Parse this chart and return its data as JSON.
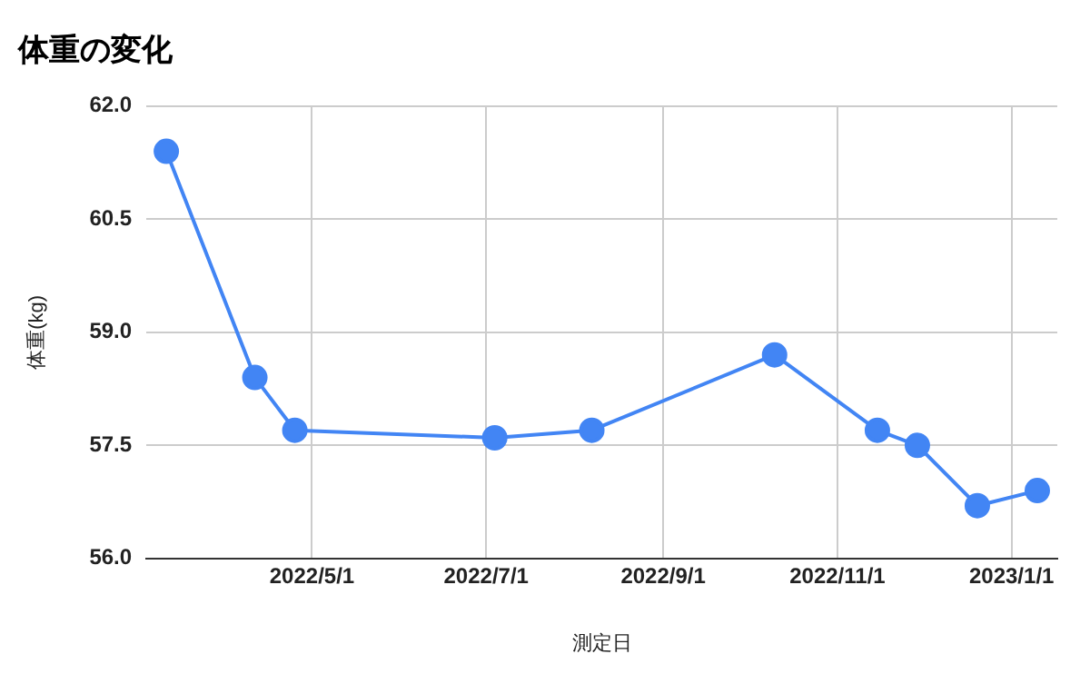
{
  "chart_data": {
    "type": "line",
    "title": "体重の変化",
    "xlabel": "測定日",
    "ylabel": "体重(kg)",
    "x": [
      "2022-03-11",
      "2022-04-11",
      "2022-04-25",
      "2022-07-04",
      "2022-08-07",
      "2022-10-10",
      "2022-11-15",
      "2022-11-29",
      "2022-12-20",
      "2023-01-10"
    ],
    "series": [
      {
        "color": "#4285f4",
        "values": [
          61.4,
          58.4,
          57.7,
          57.6,
          57.7,
          58.7,
          57.7,
          57.5,
          56.7,
          56.9
        ]
      }
    ],
    "xlim": [
      "2022-03-04",
      "2023-01-17"
    ],
    "xticks": [
      {
        "value": "2022-05-01",
        "label": "2022/5/1"
      },
      {
        "value": "2022-07-01",
        "label": "2022/7/1"
      },
      {
        "value": "2022-09-01",
        "label": "2022/9/1"
      },
      {
        "value": "2022-11-01",
        "label": "2022/11/1"
      },
      {
        "value": "2023-01-01",
        "label": "2023/1/1"
      }
    ],
    "ylim": [
      56,
      62
    ],
    "yticks": [
      {
        "value": 56,
        "label": "56.0"
      },
      {
        "value": 57.5,
        "label": "57.5"
      },
      {
        "value": 59,
        "label": "59.0"
      },
      {
        "value": 60.5,
        "label": "60.5"
      },
      {
        "value": 62,
        "label": "62.0"
      }
    ],
    "grid": true,
    "legend": false,
    "marker": "circle",
    "line_style": "solid"
  }
}
